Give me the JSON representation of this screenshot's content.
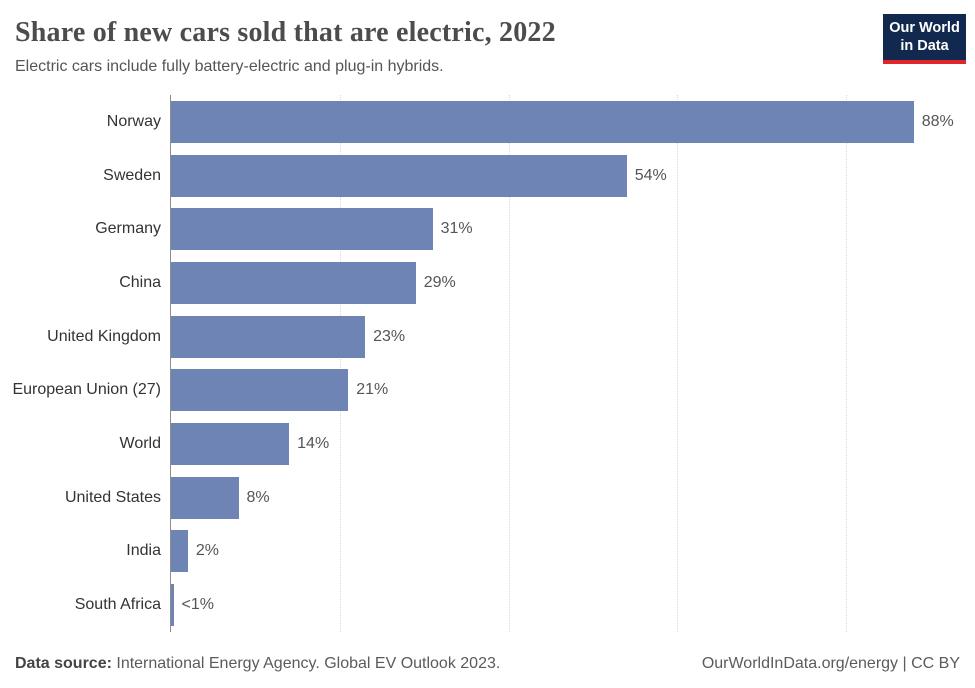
{
  "title": "Share of new cars sold that are electric, 2022",
  "subtitle": "Electric cars include fully battery-electric and plug-in hybrids.",
  "logo": {
    "line1": "Our World",
    "line2": "in Data",
    "bg_color": "#12294f",
    "accent_color": "#e0262d"
  },
  "chart_data": {
    "type": "bar",
    "orientation": "horizontal",
    "title": "Share of new cars sold that are electric, 2022",
    "xlabel": "",
    "ylabel": "",
    "categories": [
      "Norway",
      "Sweden",
      "Germany",
      "China",
      "United Kingdom",
      "European Union (27)",
      "World",
      "United States",
      "India",
      "South Africa"
    ],
    "values": [
      88,
      54,
      31,
      29,
      23,
      21,
      14,
      8,
      2,
      0.3
    ],
    "value_labels": [
      "88%",
      "54%",
      "31%",
      "29%",
      "23%",
      "21%",
      "14%",
      "8%",
      "2%",
      "<1%"
    ],
    "xlim": [
      0,
      93
    ],
    "gridlines_pct": [
      20,
      40,
      60,
      80
    ],
    "grid": true,
    "legend": "none",
    "bar_color": "#6d84b4",
    "gridline_color": "#d8d8d8",
    "axis_color": "#8e8e8e",
    "label_color": "#333333",
    "value_color": "#555555"
  },
  "footer": {
    "source_label": "Data source:",
    "source_text": " International Energy Agency. Global EV Outlook 2023.",
    "right_text": "OurWorldInData.org/energy | CC BY"
  }
}
